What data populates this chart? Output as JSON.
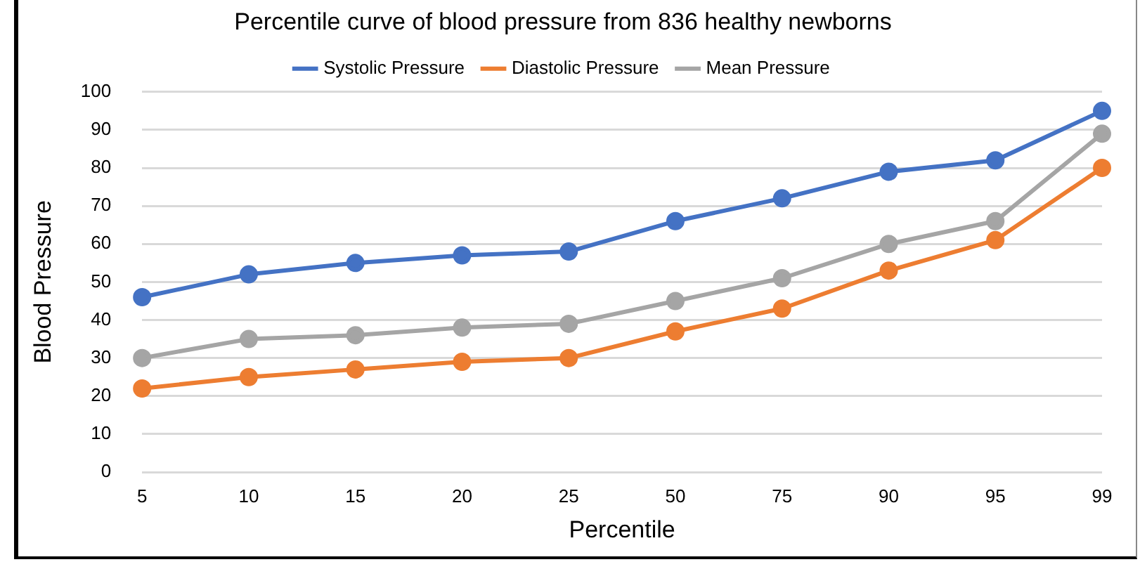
{
  "chart_data": {
    "type": "line",
    "title": "Percentile curve of blood pressure from 836 healthy newborns",
    "xlabel": "Percentile",
    "ylabel": "Blood Pressure",
    "categories": [
      "5",
      "10",
      "15",
      "20",
      "25",
      "50",
      "75",
      "90",
      "95",
      "99"
    ],
    "series": [
      {
        "name": "Systolic Pressure",
        "color": "#4472c4",
        "values": [
          46,
          52,
          55,
          57,
          58,
          66,
          72,
          79,
          82,
          95
        ]
      },
      {
        "name": "Diastolic Pressure",
        "color": "#ed7d31",
        "values": [
          22,
          25,
          27,
          29,
          30,
          37,
          43,
          53,
          61,
          80
        ]
      },
      {
        "name": "Mean Pressure",
        "color": "#a5a5a5",
        "values": [
          30,
          35,
          36,
          38,
          39,
          45,
          51,
          60,
          66,
          89
        ]
      }
    ],
    "ylim": [
      0,
      100
    ],
    "yticks": [
      0,
      10,
      20,
      30,
      40,
      50,
      60,
      70,
      80,
      90,
      100
    ],
    "grid": "y",
    "legend": "top",
    "marker": "circle",
    "line_style": "solid"
  }
}
